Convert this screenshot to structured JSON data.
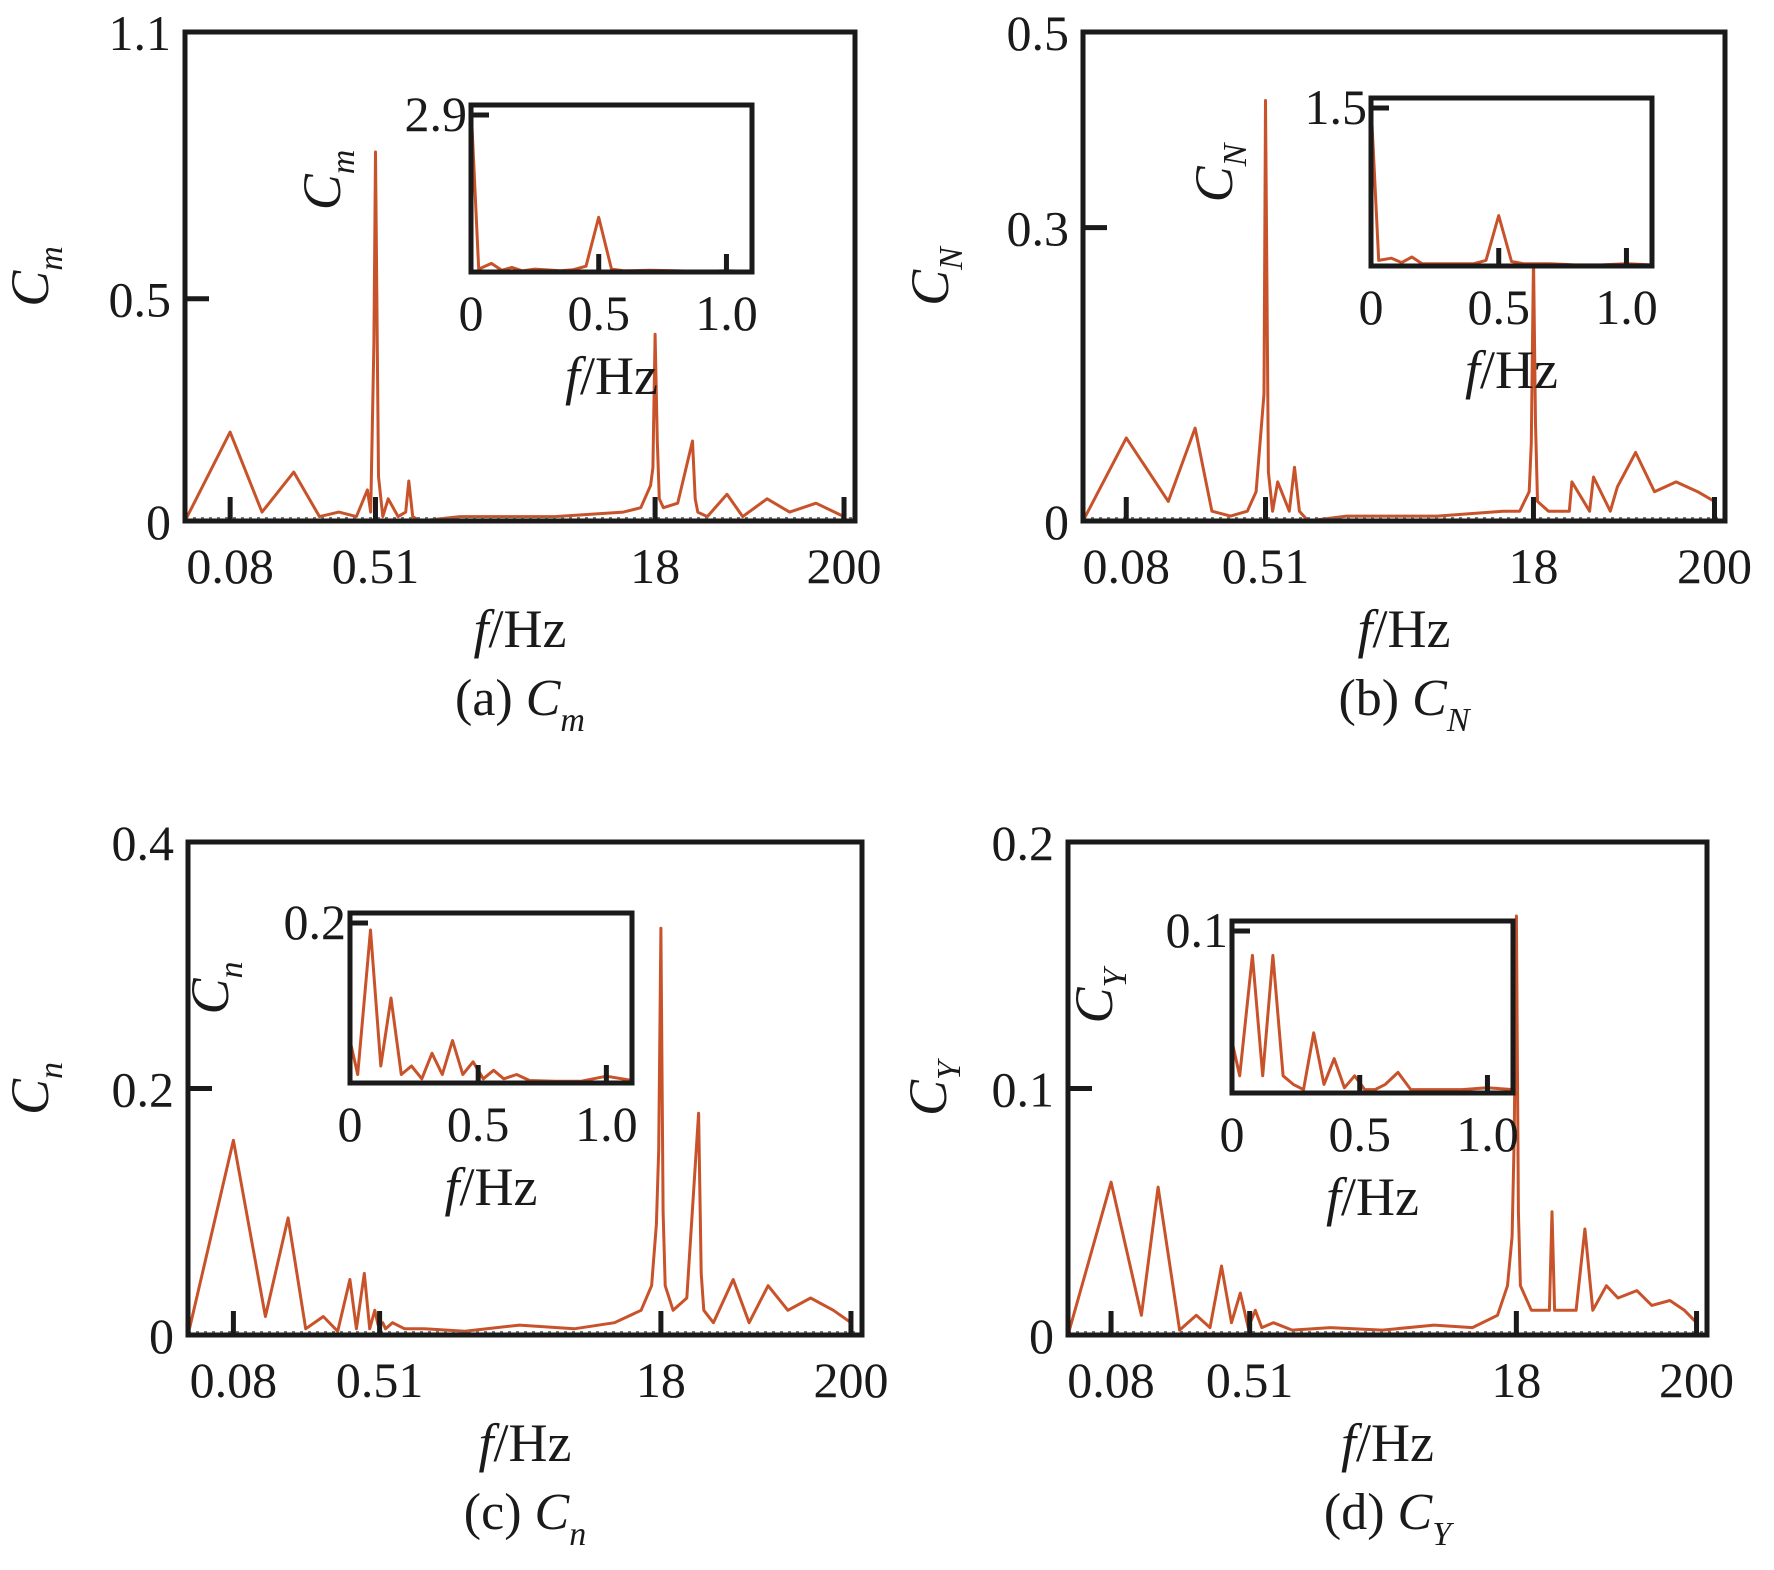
{
  "chart_data": [
    {
      "type": "line",
      "panel": "a",
      "caption_prefix": "(a) ",
      "var_main": "C",
      "var_sub": "m",
      "x_scale": "log",
      "xlim": [
        0.045,
        230
      ],
      "ylim": [
        0,
        1.1
      ],
      "xticks": [
        0.08,
        0.51,
        18,
        200
      ],
      "xtick_labels": [
        "0.08",
        "0.51",
        "18",
        "200"
      ],
      "yticks": [
        0,
        0.5,
        1.1
      ],
      "ytick_labels": [
        "0",
        "0.5",
        "1.1"
      ],
      "xlabel_italic": "f",
      "xlabel_rest": "/Hz",
      "series": [
        {
          "name": "C_m",
          "color": "#c8532a",
          "x": [
            0.045,
            0.08,
            0.12,
            0.18,
            0.25,
            0.32,
            0.4,
            0.46,
            0.48,
            0.5,
            0.51,
            0.53,
            0.56,
            0.6,
            0.68,
            0.75,
            0.78,
            0.82,
            0.9,
            1.5,
            5,
            12,
            15,
            17,
            17.5,
            18,
            18.5,
            19,
            20,
            24,
            29,
            30,
            31,
            35,
            45,
            55,
            75,
            100,
            140,
            200
          ],
          "y": [
            0,
            0.2,
            0.02,
            0.11,
            0.01,
            0.02,
            0.01,
            0.07,
            0.02,
            0.4,
            0.83,
            0.1,
            0.01,
            0.05,
            0.01,
            0.02,
            0.09,
            0.01,
            0,
            0.01,
            0.01,
            0.02,
            0.03,
            0.08,
            0.12,
            0.42,
            0.18,
            0.05,
            0.03,
            0.04,
            0.18,
            0.05,
            0.02,
            0.01,
            0.06,
            0.01,
            0.05,
            0.02,
            0.04,
            0.01
          ]
        }
      ],
      "inset": {
        "xlim": [
          0,
          1.1
        ],
        "ylim": [
          0,
          2.9
        ],
        "xticks": [
          0,
          0.5,
          1.0
        ],
        "xtick_labels": [
          "0",
          "0.5",
          "1.0"
        ],
        "ytick": 2.9,
        "ytick_label": "2.9",
        "xlabel_italic": "f",
        "xlabel_rest": "/Hz",
        "x": [
          0,
          0.03,
          0.08,
          0.12,
          0.16,
          0.2,
          0.25,
          0.35,
          0.4,
          0.45,
          0.5,
          0.55,
          0.6,
          0.7,
          0.8,
          0.9,
          1.0,
          1.1
        ],
        "y": [
          2.9,
          0.05,
          0.15,
          0.03,
          0.08,
          0.02,
          0.05,
          0.02,
          0.04,
          0.1,
          0.95,
          0.05,
          0.02,
          0.03,
          0.02,
          0.01,
          0.02,
          0.01
        ]
      }
    },
    {
      "type": "line",
      "panel": "b",
      "caption_prefix": "(b) ",
      "var_main": "C",
      "var_sub": "N",
      "x_scale": "log",
      "xlim": [
        0.045,
        230
      ],
      "ylim": [
        0,
        0.5
      ],
      "xticks": [
        0.08,
        0.51,
        18,
        200
      ],
      "xtick_labels": [
        "0.08",
        "0.51",
        "18",
        "200"
      ],
      "yticks": [
        0,
        0.3,
        0.5
      ],
      "ytick_labels": [
        "0",
        "0.3",
        "0.5"
      ],
      "xlabel_italic": "f",
      "xlabel_rest": "/Hz",
      "series": [
        {
          "name": "C_N",
          "color": "#c8532a",
          "x": [
            0.045,
            0.08,
            0.14,
            0.2,
            0.25,
            0.32,
            0.4,
            0.45,
            0.5,
            0.51,
            0.53,
            0.56,
            0.6,
            0.7,
            0.75,
            0.8,
            0.9,
            1.5,
            5,
            12,
            15,
            17,
            17.5,
            18,
            18.5,
            19,
            22,
            29,
            30,
            38,
            40,
            50,
            55,
            70,
            90,
            120,
            160,
            200
          ],
          "y": [
            0,
            0.085,
            0.02,
            0.095,
            0.01,
            0.005,
            0.01,
            0.03,
            0.13,
            0.43,
            0.05,
            0.01,
            0.04,
            0.01,
            0.055,
            0.01,
            0,
            0.005,
            0.005,
            0.01,
            0.01,
            0.03,
            0.08,
            0.27,
            0.1,
            0.02,
            0.01,
            0.01,
            0.04,
            0.01,
            0.045,
            0.01,
            0.035,
            0.07,
            0.03,
            0.04,
            0.03,
            0.02
          ]
        }
      ],
      "inset": {
        "xlim": [
          0,
          1.1
        ],
        "ylim": [
          0,
          1.5
        ],
        "xticks": [
          0,
          0.5,
          1.0
        ],
        "xtick_labels": [
          "0",
          "0.5",
          "1.0"
        ],
        "ytick": 1.5,
        "ytick_label": "1.5",
        "xlabel_italic": "f",
        "xlabel_rest": "/Hz",
        "x": [
          0,
          0.03,
          0.08,
          0.12,
          0.16,
          0.2,
          0.25,
          0.35,
          0.4,
          0.45,
          0.5,
          0.55,
          0.6,
          0.7,
          0.8,
          0.9,
          1.0,
          1.1
        ],
        "y": [
          1.45,
          0.05,
          0.07,
          0.03,
          0.08,
          0.02,
          0.02,
          0.02,
          0.02,
          0.05,
          0.45,
          0.04,
          0.02,
          0.02,
          0.01,
          0.01,
          0.02,
          0.01
        ]
      }
    },
    {
      "type": "line",
      "panel": "c",
      "caption_prefix": "(c) ",
      "var_main": "C",
      "var_sub": "n",
      "x_scale": "log",
      "xlim": [
        0.045,
        230
      ],
      "ylim": [
        0,
        0.4
      ],
      "xticks": [
        0.08,
        0.51,
        18,
        200
      ],
      "xtick_labels": [
        "0.08",
        "0.51",
        "18",
        "200"
      ],
      "yticks": [
        0,
        0.2,
        0.4
      ],
      "ytick_labels": [
        "0",
        "0.2",
        "0.4"
      ],
      "xlabel_italic": "f",
      "xlabel_rest": "/Hz",
      "series": [
        {
          "name": "C_n",
          "color": "#c8532a",
          "x": [
            0.045,
            0.08,
            0.12,
            0.16,
            0.2,
            0.25,
            0.3,
            0.35,
            0.38,
            0.42,
            0.45,
            0.48,
            0.5,
            0.53,
            0.55,
            0.6,
            0.7,
            0.9,
            1.5,
            3,
            6,
            10,
            14,
            16,
            17,
            17.5,
            18,
            18.5,
            19,
            21,
            25,
            29,
            30,
            31,
            35,
            45,
            55,
            70,
            90,
            120,
            160,
            200
          ],
          "y": [
            0,
            0.158,
            0.015,
            0.095,
            0.005,
            0.015,
            0.003,
            0.045,
            0.005,
            0.05,
            0.005,
            0.02,
            0.008,
            0.01,
            0.005,
            0.01,
            0.005,
            0.005,
            0.003,
            0.008,
            0.005,
            0.01,
            0.02,
            0.04,
            0.09,
            0.15,
            0.33,
            0.1,
            0.04,
            0.02,
            0.03,
            0.18,
            0.05,
            0.02,
            0.01,
            0.045,
            0.01,
            0.04,
            0.02,
            0.03,
            0.02,
            0.01
          ]
        }
      ],
      "inset": {
        "xlim": [
          0,
          1.1
        ],
        "ylim": [
          0,
          0.2
        ],
        "xticks": [
          0,
          0.5,
          1.0
        ],
        "xtick_labels": [
          "0",
          "0.5",
          "1.0"
        ],
        "ytick": 0.2,
        "ytick_label": "0.2",
        "xlabel_italic": "f",
        "xlabel_rest": "/Hz",
        "x": [
          0,
          0.03,
          0.08,
          0.12,
          0.16,
          0.2,
          0.24,
          0.28,
          0.32,
          0.36,
          0.4,
          0.44,
          0.48,
          0.52,
          0.56,
          0.6,
          0.65,
          0.7,
          0.8,
          0.9,
          1.0,
          1.1
        ],
        "y": [
          0.05,
          0.01,
          0.18,
          0.02,
          0.1,
          0.01,
          0.02,
          0.005,
          0.035,
          0.01,
          0.05,
          0.01,
          0.025,
          0.005,
          0.015,
          0.005,
          0.01,
          0.003,
          0.002,
          0.002,
          0.008,
          0.003
        ]
      }
    },
    {
      "type": "line",
      "panel": "d",
      "caption_prefix": "(d) ",
      "var_main": "C",
      "var_sub": "Y",
      "x_scale": "log",
      "xlim": [
        0.045,
        230
      ],
      "ylim": [
        0,
        0.2
      ],
      "xticks": [
        0.08,
        0.51,
        18,
        200
      ],
      "xtick_labels": [
        "0.08",
        "0.51",
        "18",
        "200"
      ],
      "yticks": [
        0,
        0.1,
        0.2
      ],
      "ytick_labels": [
        "0",
        "0.1",
        "0.2"
      ],
      "xlabel_italic": "f",
      "xlabel_rest": "/Hz",
      "series": [
        {
          "name": "C_Y",
          "color": "#c8532a",
          "x": [
            0.045,
            0.08,
            0.12,
            0.15,
            0.2,
            0.25,
            0.3,
            0.35,
            0.4,
            0.45,
            0.5,
            0.55,
            0.6,
            0.7,
            0.9,
            1.5,
            3,
            6,
            10,
            14,
            16,
            17,
            17.5,
            18,
            18.5,
            19,
            22,
            28,
            29,
            30,
            40,
            45,
            50,
            60,
            70,
            90,
            110,
            140,
            170,
            200
          ],
          "y": [
            0,
            0.062,
            0.008,
            0.06,
            0.002,
            0.008,
            0.003,
            0.028,
            0.005,
            0.017,
            0.003,
            0.01,
            0.003,
            0.005,
            0.002,
            0.003,
            0.002,
            0.004,
            0.003,
            0.008,
            0.02,
            0.04,
            0.08,
            0.17,
            0.05,
            0.02,
            0.01,
            0.01,
            0.05,
            0.01,
            0.01,
            0.043,
            0.01,
            0.02,
            0.015,
            0.018,
            0.012,
            0.014,
            0.01,
            0.005
          ]
        }
      ],
      "inset": {
        "xlim": [
          0,
          1.1
        ],
        "ylim": [
          0,
          0.1
        ],
        "xticks": [
          0,
          0.5,
          1.0
        ],
        "xtick_labels": [
          "0",
          "0.5",
          "1.0"
        ],
        "ytick": 0.1,
        "ytick_label": "0.1",
        "xlabel_italic": "f",
        "xlabel_rest": "/Hz",
        "x": [
          0,
          0.03,
          0.08,
          0.12,
          0.16,
          0.2,
          0.24,
          0.28,
          0.32,
          0.36,
          0.4,
          0.44,
          0.48,
          0.52,
          0.56,
          0.6,
          0.65,
          0.7,
          0.8,
          0.9,
          1.0,
          1.1
        ],
        "y": [
          0.03,
          0.01,
          0.08,
          0.01,
          0.08,
          0.01,
          0.005,
          0.002,
          0.035,
          0.005,
          0.02,
          0.003,
          0.01,
          0.002,
          0.002,
          0.005,
          0.012,
          0.002,
          0.002,
          0.002,
          0.003,
          0.002
        ]
      }
    }
  ]
}
